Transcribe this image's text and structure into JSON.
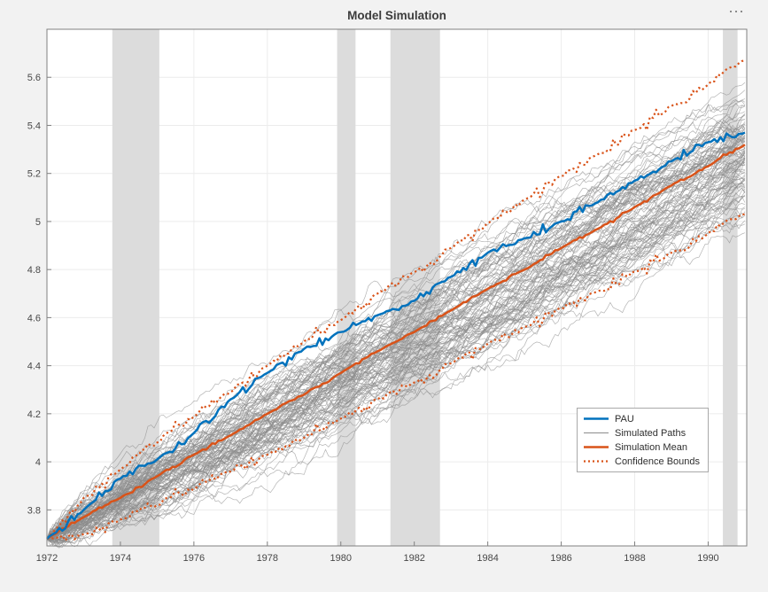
{
  "window": {
    "toolbar_ellipsis": "⋯"
  },
  "colors": {
    "figure_bg": "#f2f2f2",
    "plot_bg": "#ffffff",
    "band": "#dcdcdc",
    "grid": "#ececec",
    "axis": "#808080",
    "tick_label": "#474747",
    "title": "#3c3c3c",
    "pau_blue": "#0072BD",
    "sim_orange": "#D95319",
    "path_gray": "#8c8c8c",
    "legend_border": "#a9a9a9",
    "legend_text": "#2e2e2e"
  },
  "chart_data": {
    "type": "line",
    "title": "Model Simulation",
    "xlabel": "",
    "ylabel": "",
    "xlim": [
      1972,
      1991.05
    ],
    "ylim": [
      3.65,
      5.8
    ],
    "grid": true,
    "legend_position": "right-lower-inside",
    "x_ticks": {
      "values": [
        1972,
        1974,
        1976,
        1978,
        1980,
        1982,
        1984,
        1986,
        1988,
        1990
      ],
      "labels": [
        "1972",
        "1974",
        "1976",
        "1978",
        "1980",
        "1982",
        "1984",
        "1986",
        "1988",
        "1990"
      ]
    },
    "y_ticks": {
      "values": [
        3.8,
        4,
        4.2,
        4.4,
        4.6,
        4.8,
        5,
        5.2,
        5.4,
        5.6
      ],
      "labels": [
        "3.8",
        "4",
        "4.2",
        "4.4",
        "4.6",
        "4.8",
        "5",
        "5.2",
        "5.4",
        "5.6"
      ]
    },
    "recession_bands": [
      [
        1973.78,
        1975.06
      ],
      [
        1979.9,
        1980.4
      ],
      [
        1981.35,
        1982.7
      ],
      [
        1990.4,
        1990.8
      ]
    ],
    "x_years": [
      1972,
      1973,
      1974,
      1975,
      1976,
      1977,
      1978,
      1979,
      1980,
      1981,
      1982,
      1983,
      1984,
      1985,
      1986,
      1987,
      1988,
      1989,
      1990,
      1991
    ],
    "series": [
      {
        "name": "PAU",
        "color_key": "pau_blue",
        "style": "solid",
        "width": 2.5,
        "wiggle": 0.01,
        "values": [
          3.68,
          3.8,
          3.93,
          4.01,
          4.12,
          4.26,
          4.37,
          4.47,
          4.54,
          4.61,
          4.67,
          4.77,
          4.87,
          4.93,
          5.0,
          5.08,
          5.17,
          5.25,
          5.33,
          5.37
        ]
      },
      {
        "name": "Simulation Mean",
        "color_key": "sim_orange",
        "style": "solid",
        "width": 2.5,
        "wiggle": 0.004,
        "values": [
          3.68,
          3.77,
          3.85,
          3.94,
          4.03,
          4.11,
          4.2,
          4.28,
          4.37,
          4.46,
          4.54,
          4.63,
          4.72,
          4.8,
          4.89,
          4.97,
          5.06,
          5.15,
          5.23,
          5.32
        ]
      },
      {
        "name": "Confidence Bound Upper",
        "color_key": "sim_orange",
        "style": "dotted",
        "width": 2.2,
        "wiggle": 0.014,
        "values": [
          3.68,
          3.85,
          3.97,
          4.08,
          4.19,
          4.29,
          4.4,
          4.5,
          4.59,
          4.7,
          4.79,
          4.89,
          4.99,
          5.09,
          5.19,
          5.28,
          5.38,
          5.48,
          5.57,
          5.67
        ]
      },
      {
        "name": "Confidence Bound Lower",
        "color_key": "sim_orange",
        "style": "dotted",
        "width": 2.2,
        "wiggle": 0.014,
        "values": [
          3.68,
          3.7,
          3.76,
          3.82,
          3.89,
          3.96,
          4.03,
          4.1,
          4.18,
          4.26,
          4.33,
          4.41,
          4.49,
          4.56,
          4.64,
          4.71,
          4.79,
          4.87,
          4.95,
          5.03
        ]
      }
    ],
    "simulated_paths": {
      "name": "Simulated Paths",
      "count": 100,
      "start": 3.68,
      "end_mean": 5.28,
      "end_sd": 0.13,
      "end_min": 4.88,
      "end_max": 5.58,
      "step_sigma": 0.013,
      "seed": 11,
      "color_key": "path_gray"
    },
    "legend": {
      "entries": [
        {
          "label": "PAU",
          "swatch": "pau"
        },
        {
          "label": "Simulated Paths",
          "swatch": "paths"
        },
        {
          "label": "Simulation Mean",
          "swatch": "mean"
        },
        {
          "label": "Confidence Bounds",
          "swatch": "bounds"
        }
      ]
    }
  }
}
